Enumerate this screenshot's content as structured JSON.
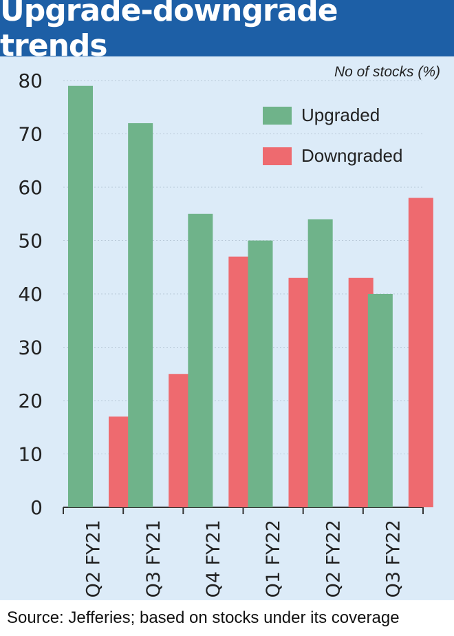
{
  "header": {
    "title": "Upgrade-downgrade trends"
  },
  "unit_label": "No of stocks (%)",
  "source": "Source: Jefferies; based on stocks under its coverage",
  "colors": {
    "title_bg": "#1d5fa6",
    "panel_bg": "#dcebf8",
    "upgraded": "#6fb38a",
    "downgraded": "#ee6a6f"
  },
  "chart_data": {
    "type": "bar",
    "title": "Upgrade-downgrade trends",
    "ylabel": "No of stocks (%)",
    "xlabel": "",
    "categories": [
      "Q2 FY21",
      "Q3 FY21",
      "Q4 FY21",
      "Q1 FY22",
      "Q2 FY22",
      "Q3 FY22"
    ],
    "series": [
      {
        "name": "Upgraded",
        "values": [
          79,
          72,
          55,
          50,
          54,
          40
        ]
      },
      {
        "name": "Downgraded",
        "values": [
          17,
          25,
          47,
          43,
          43,
          58
        ]
      }
    ],
    "ylim": [
      0,
      80
    ],
    "yticks": [
      0,
      10,
      20,
      30,
      40,
      50,
      60,
      70,
      80
    ],
    "grid": true,
    "legend_position": "top-right"
  }
}
